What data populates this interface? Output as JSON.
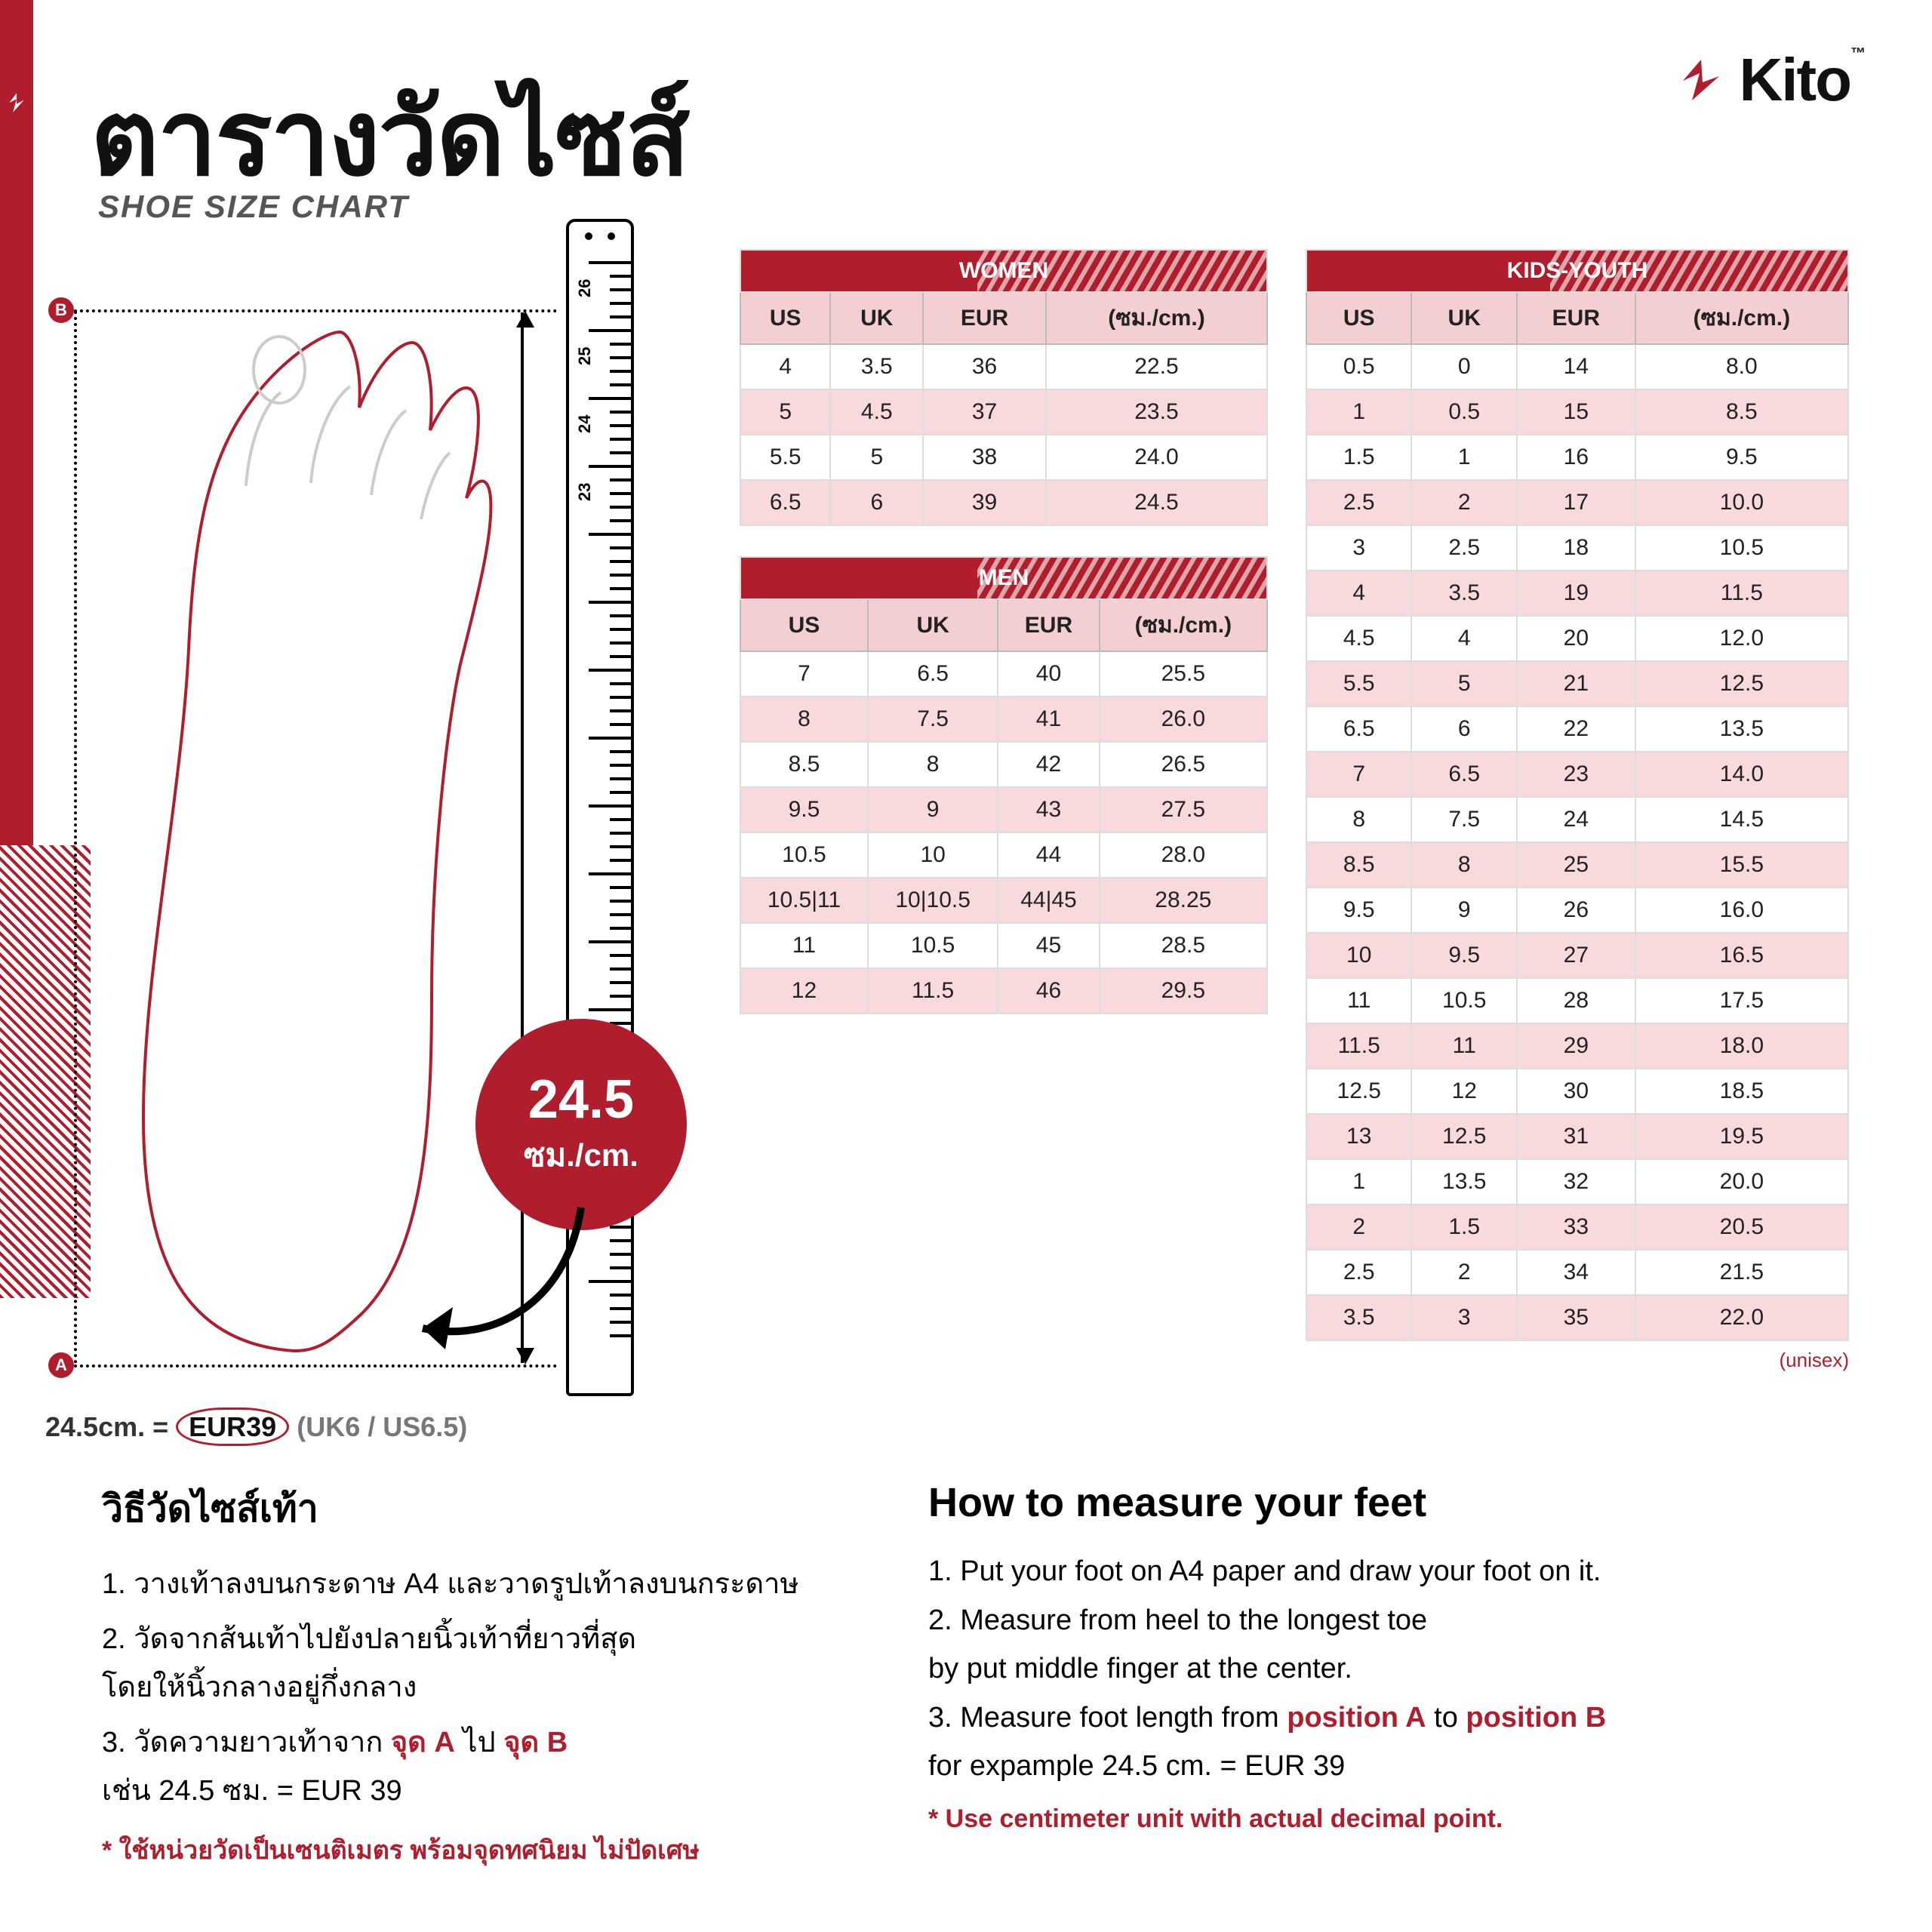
{
  "brand": {
    "name": "Kito",
    "tm": "™"
  },
  "title": {
    "th": "ตารางวัดไซส์",
    "en": "SHOE SIZE CHART"
  },
  "badge": {
    "value": "24.5",
    "unit": "ซม./cm."
  },
  "ruler_numbers": [
    "26",
    "25",
    "24",
    "23"
  ],
  "markerA": "A",
  "markerB": "B",
  "conversion": {
    "cm": "24.5cm. =",
    "eur": "EUR39",
    "rest": "(UK6 / US6.5)"
  },
  "columns": [
    "US",
    "UK",
    "EUR",
    "(ซม./cm.)"
  ],
  "tables": {
    "women": {
      "label": "WOMEN",
      "rows": [
        [
          "4",
          "3.5",
          "36",
          "22.5"
        ],
        [
          "5",
          "4.5",
          "37",
          "23.5"
        ],
        [
          "5.5",
          "5",
          "38",
          "24.0"
        ],
        [
          "6.5",
          "6",
          "39",
          "24.5"
        ]
      ]
    },
    "men": {
      "label": "MEN",
      "rows": [
        [
          "7",
          "6.5",
          "40",
          "25.5"
        ],
        [
          "8",
          "7.5",
          "41",
          "26.0"
        ],
        [
          "8.5",
          "8",
          "42",
          "26.5"
        ],
        [
          "9.5",
          "9",
          "43",
          "27.5"
        ],
        [
          "10.5",
          "10",
          "44",
          "28.0"
        ],
        [
          "10.5|11",
          "10|10.5",
          "44|45",
          "28.25"
        ],
        [
          "11",
          "10.5",
          "45",
          "28.5"
        ],
        [
          "12",
          "11.5",
          "46",
          "29.5"
        ]
      ]
    },
    "kids": {
      "label": "KIDS-YOUTH",
      "rows": [
        [
          "0.5",
          "0",
          "14",
          "8.0"
        ],
        [
          "1",
          "0.5",
          "15",
          "8.5"
        ],
        [
          "1.5",
          "1",
          "16",
          "9.5"
        ],
        [
          "2.5",
          "2",
          "17",
          "10.0"
        ],
        [
          "3",
          "2.5",
          "18",
          "10.5"
        ],
        [
          "4",
          "3.5",
          "19",
          "11.5"
        ],
        [
          "4.5",
          "4",
          "20",
          "12.0"
        ],
        [
          "5.5",
          "5",
          "21",
          "12.5"
        ],
        [
          "6.5",
          "6",
          "22",
          "13.5"
        ],
        [
          "7",
          "6.5",
          "23",
          "14.0"
        ],
        [
          "8",
          "7.5",
          "24",
          "14.5"
        ],
        [
          "8.5",
          "8",
          "25",
          "15.5"
        ],
        [
          "9.5",
          "9",
          "26",
          "16.0"
        ],
        [
          "10",
          "9.5",
          "27",
          "16.5"
        ],
        [
          "11",
          "10.5",
          "28",
          "17.5"
        ],
        [
          "11.5",
          "11",
          "29",
          "18.0"
        ],
        [
          "12.5",
          "12",
          "30",
          "18.5"
        ],
        [
          "13",
          "12.5",
          "31",
          "19.5"
        ],
        [
          "1",
          "13.5",
          "32",
          "20.0"
        ],
        [
          "2",
          "1.5",
          "33",
          "20.5"
        ],
        [
          "2.5",
          "2",
          "34",
          "21.5"
        ],
        [
          "3.5",
          "3",
          "35",
          "22.0"
        ]
      ]
    }
  },
  "unisex_note": "(unisex)",
  "howto_th": {
    "title": "วิธีวัดไซส์เท้า",
    "steps": [
      "1. วางเท้าลงบนกระดาษ A4 และวาดรูปเท้าลงบนกระดาษ",
      "2. วัดจากส้นเท้าไปยังปลายนิ้วเท้าที่ยาวที่สุด\nโดยให้นิ้วกลางอยู่กึ่งกลาง",
      "3. วัดความยาวเท้าจาก จุด A ไป จุด B\nเช่น 24.5 ซม. = EUR 39"
    ],
    "step3_parts": [
      "3. วัดความยาวเท้าจาก ",
      "จุด A",
      " ไป ",
      "จุด B",
      "เช่น 24.5 ซม. = EUR 39"
    ],
    "note": "* ใช้หน่วยวัดเป็นเซนติเมตร พร้อมจุดทศนิยม ไม่ปัดเศษ"
  },
  "howto_en": {
    "title": "How to measure your feet",
    "steps": [
      "1. Put your foot on A4 paper and draw your foot on it.",
      "2. Measure from heel to the longest toe\nby put middle finger at the center.",
      "3. Measure foot length from position A to position B\nfor expample 24.5 cm. = EUR 39"
    ],
    "step3_parts": [
      "3. Measure foot length from ",
      "position A",
      " to ",
      "position B",
      "for expample 24.5 cm. = EUR 39"
    ],
    "note": "* Use centimeter unit with actual decimal point."
  },
  "colors": {
    "brand_red": "#b01e2d",
    "pink_header": "#f3cfd1",
    "pink_row": "#f9dadc",
    "border_gray": "#bbb"
  }
}
